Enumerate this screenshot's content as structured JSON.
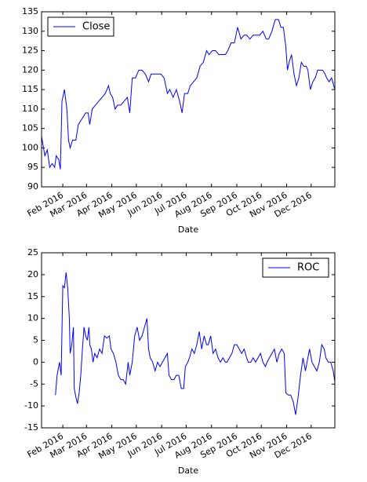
{
  "chart_data": [
    {
      "type": "line",
      "x": [
        6,
        10,
        13,
        16,
        19,
        22,
        24,
        27,
        29,
        31,
        34,
        37,
        39,
        41,
        44,
        48,
        51,
        54,
        57,
        60,
        63,
        65,
        68,
        72,
        76,
        80,
        84,
        88,
        90,
        93,
        96,
        99,
        103,
        107,
        111,
        114,
        117,
        121,
        125,
        129,
        133,
        137,
        140,
        144,
        148,
        152,
        156,
        160,
        163,
        167,
        171,
        175,
        178,
        181,
        185,
        188,
        192,
        196,
        200,
        204,
        208,
        211,
        215,
        219,
        223,
        227,
        231,
        234,
        238,
        242,
        246,
        250,
        254,
        257,
        261,
        265,
        269,
        273,
        277,
        281,
        284,
        288,
        292,
        296,
        299,
        302,
        305,
        307,
        309,
        312,
        315,
        318,
        321,
        324,
        327,
        330,
        332,
        335,
        338,
        341,
        344,
        347,
        350,
        353,
        355,
        358,
        361,
        365
      ],
      "series": [
        {
          "name": "Close",
          "color": "#0000ff",
          "values": [
            103,
            98,
            99.5,
            95,
            96,
            95,
            98,
            97,
            94.5,
            112,
            115,
            110,
            102,
            100,
            102,
            102,
            106,
            107,
            108,
            109,
            109,
            106,
            110,
            111,
            112,
            113,
            114,
            116,
            114,
            113,
            110,
            111,
            111,
            112,
            113,
            109,
            118,
            118,
            120,
            120,
            119,
            117,
            119,
            119,
            119,
            119,
            118,
            114,
            115,
            113,
            115,
            112,
            109,
            114,
            114,
            116,
            117,
            118,
            121,
            122,
            125,
            124,
            125,
            125,
            124,
            124,
            124,
            125,
            127,
            127,
            131,
            128,
            129,
            129,
            128,
            129,
            129,
            129,
            130,
            128,
            128,
            130,
            133,
            133,
            131,
            131,
            126,
            120,
            122,
            124,
            119,
            116,
            118,
            122,
            121,
            121,
            120,
            115,
            117,
            118,
            120,
            120,
            120,
            119,
            118,
            117,
            118,
            115
          ]
        }
      ],
      "xlim": [
        6,
        365
      ],
      "xticks": [
        {
          "value": 32,
          "label": "Feb 2016"
        },
        {
          "value": 61,
          "label": "Mar 2016"
        },
        {
          "value": 92,
          "label": "Apr 2016"
        },
        {
          "value": 122,
          "label": "May 2016"
        },
        {
          "value": 153,
          "label": "Jun 2016"
        },
        {
          "value": 183,
          "label": "Jul 2016"
        },
        {
          "value": 214,
          "label": "Aug 2016"
        },
        {
          "value": 245,
          "label": "Sep 2016"
        },
        {
          "value": 275,
          "label": "Oct 2016"
        },
        {
          "value": 306,
          "label": "Nov 2016"
        },
        {
          "value": 336,
          "label": "Dec 2016"
        }
      ],
      "ylim": [
        90,
        135
      ],
      "yticks": [
        90,
        95,
        100,
        105,
        110,
        115,
        120,
        125,
        130,
        135
      ],
      "xlabel": "Date",
      "legend": "upper left"
    },
    {
      "type": "line",
      "x": [
        23,
        25,
        28,
        30,
        32,
        34,
        36,
        38,
        40,
        41,
        43,
        45,
        46,
        48,
        50,
        52,
        54,
        56,
        58,
        60,
        62,
        64,
        65,
        67,
        69,
        71,
        74,
        77,
        80,
        83,
        86,
        89,
        91,
        94,
        97,
        100,
        103,
        106,
        109,
        112,
        114,
        117,
        120,
        123,
        126,
        129,
        132,
        135,
        137,
        139,
        142,
        145,
        148,
        151,
        154,
        157,
        160,
        162,
        165,
        168,
        171,
        174,
        177,
        180,
        182,
        185,
        187,
        190,
        193,
        196,
        199,
        202,
        205,
        208,
        210,
        213,
        216,
        219,
        222,
        225,
        228,
        231,
        233,
        236,
        239,
        242,
        245,
        248,
        251,
        254,
        257,
        259,
        262,
        265,
        268,
        271,
        274,
        277,
        280,
        282,
        285,
        288,
        291,
        294,
        297,
        300,
        303,
        305,
        308,
        311,
        314,
        317,
        320,
        323,
        326,
        329,
        331,
        334,
        337,
        340,
        343,
        346,
        349,
        352,
        354,
        357,
        360,
        363,
        365
      ],
      "series": [
        {
          "name": "ROC",
          "color": "#0000ff",
          "values": [
            -7.5,
            -3,
            0,
            -3,
            17.5,
            17,
            20.5,
            17,
            10,
            2,
            4,
            8,
            -6,
            -8,
            -9.5,
            -7,
            -3,
            3,
            8,
            6,
            5,
            8,
            4,
            3,
            0,
            2,
            1,
            3,
            2,
            6,
            5.5,
            6,
            3,
            2,
            0,
            -3,
            -4,
            -4,
            -5,
            0,
            -3,
            0,
            6,
            8,
            5,
            6,
            8,
            10,
            3,
            1,
            0,
            -2,
            0,
            -1,
            0,
            1,
            2,
            -3,
            -4,
            -4,
            -3,
            -3,
            -6,
            -6,
            -1,
            0,
            1,
            3,
            2,
            4,
            7,
            3,
            6,
            4,
            4,
            6,
            2,
            3,
            1,
            0,
            1,
            0,
            0,
            1,
            2,
            4,
            4,
            3,
            2,
            3,
            1,
            0,
            0,
            1,
            0,
            1,
            2,
            0,
            -1,
            0,
            1,
            2,
            3,
            0,
            2,
            3,
            2,
            -7,
            -7.5,
            -7.5,
            -9,
            -12,
            -8,
            -3,
            1,
            -2,
            0,
            3,
            0,
            -1,
            -2,
            0,
            4,
            3,
            1,
            0,
            0,
            -2,
            -4.5
          ]
        }
      ],
      "xlim": [
        6,
        365
      ],
      "xticks": [
        {
          "value": 32,
          "label": "Feb 2016"
        },
        {
          "value": 61,
          "label": "Mar 2016"
        },
        {
          "value": 92,
          "label": "Apr 2016"
        },
        {
          "value": 122,
          "label": "May 2016"
        },
        {
          "value": 153,
          "label": "Jun 2016"
        },
        {
          "value": 183,
          "label": "Jul 2016"
        },
        {
          "value": 214,
          "label": "Aug 2016"
        },
        {
          "value": 245,
          "label": "Sep 2016"
        },
        {
          "value": 275,
          "label": "Oct 2016"
        },
        {
          "value": 306,
          "label": "Nov 2016"
        },
        {
          "value": 336,
          "label": "Dec 2016"
        }
      ],
      "ylim": [
        -15,
        25
      ],
      "yticks": [
        -15,
        -10,
        -5,
        0,
        5,
        10,
        15,
        20,
        25
      ],
      "xlabel": "Date",
      "legend": "upper right"
    }
  ]
}
